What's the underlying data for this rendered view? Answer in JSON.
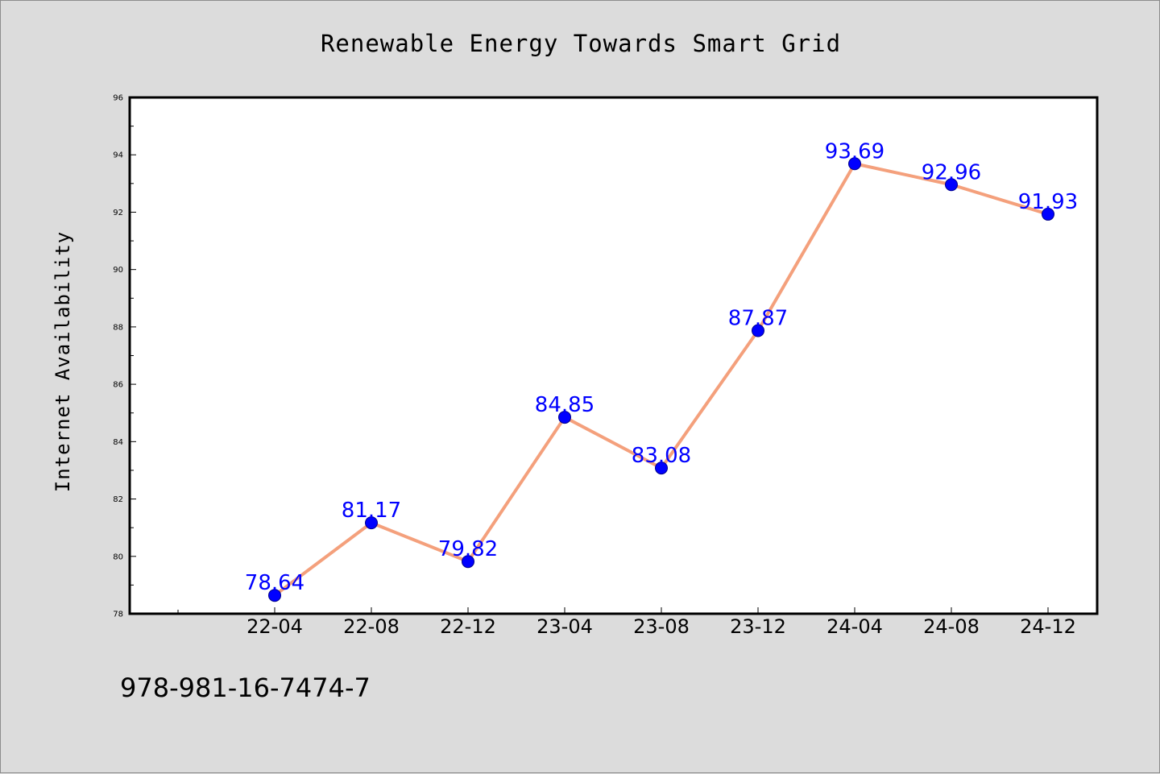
{
  "chart_data": {
    "type": "line",
    "title": "Renewable Energy Towards Smart Grid",
    "xlabel": "",
    "ylabel": "Internet Availability",
    "categories": [
      "22-04",
      "22-08",
      "22-12",
      "23-04",
      "23-08",
      "23-12",
      "24-04",
      "24-08",
      "24-12"
    ],
    "series": [
      {
        "values": [
          78.64,
          81.17,
          79.82,
          84.85,
          83.08,
          87.87,
          93.69,
          92.96,
          91.93
        ]
      }
    ],
    "data_labels": [
      "78.64",
      "81.17",
      "79.82",
      "84.85",
      "83.08",
      "87.87",
      "93.69",
      "92.96",
      "91.93"
    ],
    "ylim": [
      78,
      96
    ],
    "y_ticks": [
      "78",
      "80",
      "82",
      "84",
      "86",
      "88",
      "90",
      "92",
      "94",
      "96"
    ],
    "grid": false,
    "legend": "none",
    "colors": {
      "line": "#f4a07c",
      "marker": "#0000ff",
      "label": "#0000ff",
      "plot_background": "#ffffff",
      "figure_background": "#dcdcdc"
    }
  },
  "footer": {
    "text": "978-981-16-7474-7"
  }
}
